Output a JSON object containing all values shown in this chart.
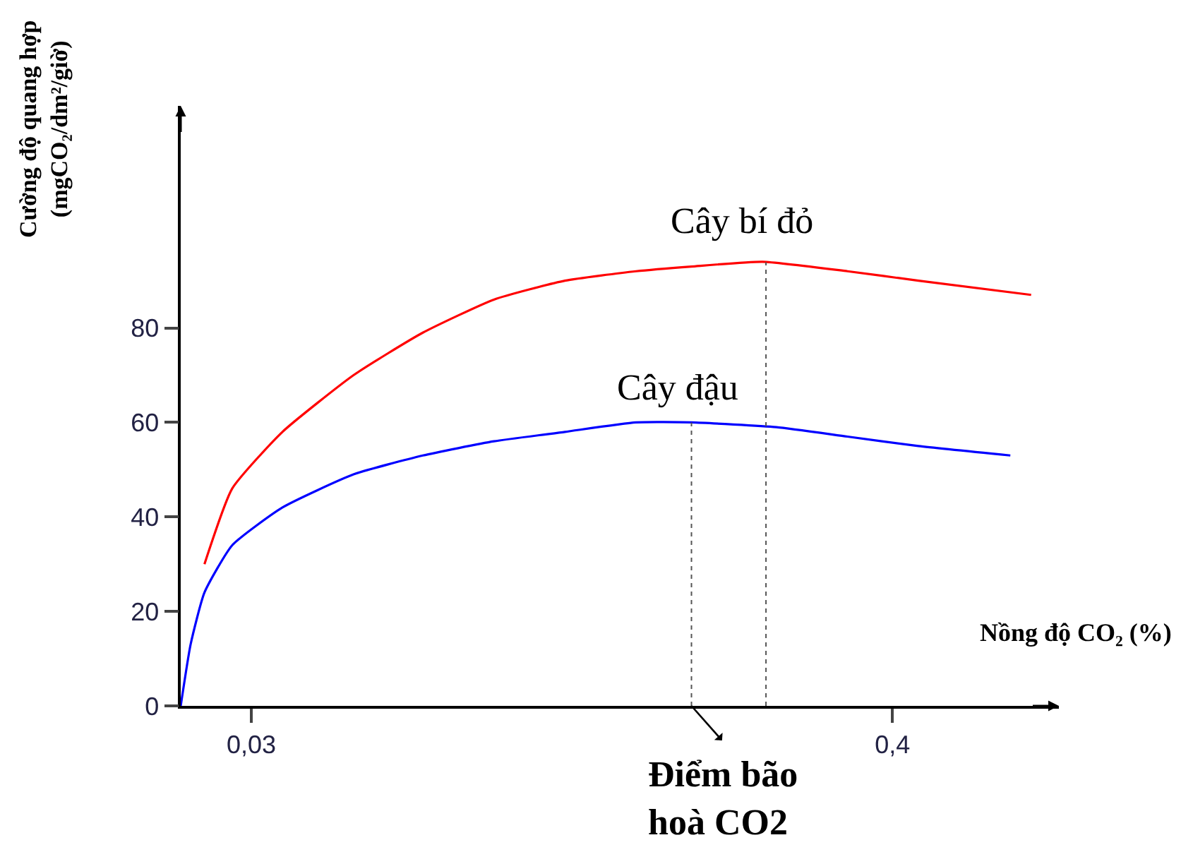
{
  "chart_data": {
    "type": "line",
    "xlabel": "Nồng độ CO₂ (%)",
    "ylabel": "Cường độ quang hợp\n(mgCO₂/dm²/giờ)",
    "xlim": [
      -0.0107,
      0.496
    ],
    "xticks": [
      {
        "value": 0.03,
        "label": "0,03"
      },
      {
        "value": 0.4,
        "label": "0,4"
      }
    ],
    "ylim": [
      0,
      127
    ],
    "yticks": [
      0,
      20,
      40,
      60,
      80
    ],
    "grid": false,
    "legend": false,
    "marker": "none",
    "line_style": "solid",
    "series": [
      {
        "name": "Cây bí đỏ",
        "color": "#ff0000",
        "x": [
          0.003,
          0.019,
          0.048,
          0.089,
          0.129,
          0.17,
          0.211,
          0.252,
          0.284,
          0.325,
          0.374,
          0.415,
          0.48
        ],
        "values": [
          30,
          46,
          58,
          70,
          79,
          86,
          90,
          92,
          93,
          94,
          92,
          90,
          87
        ]
      },
      {
        "name": "Cây đậu",
        "color": "#0000ff",
        "x": [
          -0.0107,
          -0.005,
          0.003,
          0.019,
          0.048,
          0.089,
          0.129,
          0.17,
          0.211,
          0.252,
          0.284,
          0.333,
          0.374,
          0.415,
          0.468
        ],
        "values": [
          0,
          13,
          24,
          34,
          42,
          49,
          53,
          56,
          58,
          60,
          60,
          59,
          57,
          55,
          53
        ]
      }
    ],
    "ref_lines": [
      {
        "axis": "x",
        "value": 0.284,
        "color": "#555555",
        "line_style": "dotted"
      },
      {
        "axis": "x",
        "value": 0.327,
        "color": "#555555",
        "line_style": "dotted"
      }
    ],
    "annotations": [
      {
        "text": "Điểm bão\nhoà CO2",
        "x": 0.284,
        "y": 0
      }
    ]
  }
}
